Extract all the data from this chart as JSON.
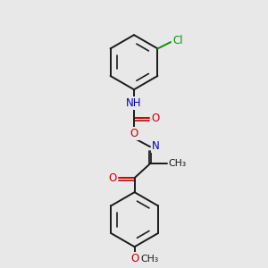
{
  "background": "#e8e8e8",
  "bond_color": "#1a1a1a",
  "bond_width": 1.4,
  "N_color": "#0000cc",
  "O_color": "#cc0000",
  "Cl_color": "#009900",
  "font_size": 8.5,
  "figsize": [
    3.0,
    3.0
  ],
  "dpi": 100,
  "xlim": [
    0,
    10
  ],
  "ylim": [
    0,
    10
  ]
}
